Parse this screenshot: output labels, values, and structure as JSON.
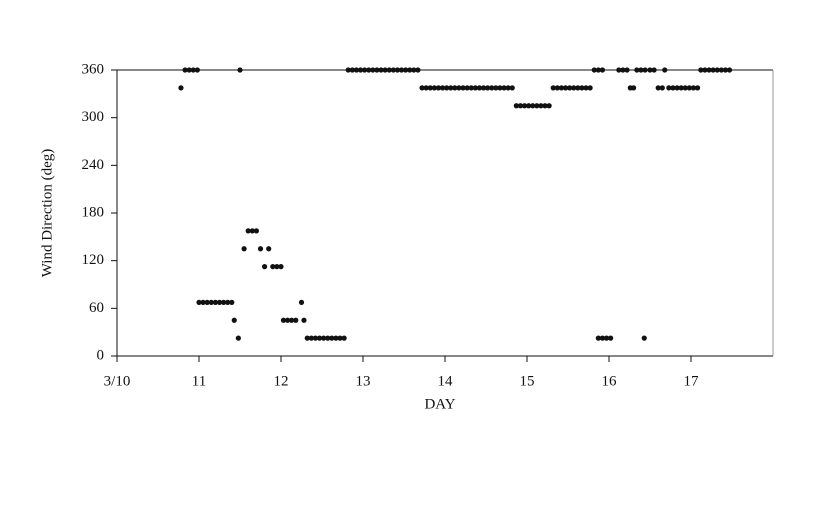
{
  "chart_data": {
    "type": "scatter",
    "x_label": "DAY",
    "y_label": "Wind Direction (deg)",
    "color": "#111111",
    "xlim": [
      10,
      18
    ],
    "ylim": [
      0,
      360
    ],
    "xticks": [
      {
        "value": 10,
        "label": "3/10"
      },
      11,
      12,
      13,
      14,
      15,
      16,
      17
    ],
    "yticks": [
      0,
      60,
      120,
      180,
      240,
      300,
      360
    ],
    "x": [
      10.78,
      10.83,
      10.88,
      10.93,
      10.98,
      11.0,
      11.05,
      11.1,
      11.15,
      11.2,
      11.25,
      11.3,
      11.35,
      11.4,
      11.43,
      11.48,
      11.5,
      11.55,
      11.6,
      11.65,
      11.7,
      11.75,
      11.8,
      11.85,
      11.9,
      11.95,
      12.0,
      12.03,
      12.08,
      12.13,
      12.18,
      12.25,
      12.28,
      12.32,
      12.37,
      12.42,
      12.47,
      12.52,
      12.57,
      12.62,
      12.67,
      12.72,
      12.77,
      12.82,
      12.87,
      12.92,
      12.97,
      13.02,
      13.07,
      13.12,
      13.17,
      13.22,
      13.27,
      13.32,
      13.37,
      13.42,
      13.47,
      13.52,
      13.57,
      13.62,
      13.67,
      13.72,
      13.77,
      13.82,
      13.87,
      13.92,
      13.97,
      14.02,
      14.07,
      14.12,
      14.17,
      14.22,
      14.27,
      14.32,
      14.37,
      14.42,
      14.47,
      14.52,
      14.57,
      14.62,
      14.67,
      14.72,
      14.77,
      14.82,
      14.87,
      14.92,
      14.97,
      15.02,
      15.07,
      15.12,
      15.17,
      15.22,
      15.27,
      15.32,
      15.37,
      15.42,
      15.47,
      15.52,
      15.57,
      15.62,
      15.67,
      15.72,
      15.77,
      15.82,
      15.87,
      15.92,
      15.87,
      15.92,
      15.97,
      16.02,
      16.12,
      16.17,
      16.22,
      16.26,
      16.3,
      16.34,
      16.39,
      16.44,
      16.43,
      16.5,
      16.55,
      16.6,
      16.65,
      16.68,
      16.73,
      16.78,
      16.83,
      16.88,
      16.93,
      16.98,
      17.03,
      17.08,
      17.12,
      17.17,
      17.22,
      17.27,
      17.32,
      17.37,
      17.42,
      17.47
    ],
    "values": [
      337.5,
      360,
      360,
      360,
      360,
      67.5,
      67.5,
      67.5,
      67.5,
      67.5,
      67.5,
      67.5,
      67.5,
      67.5,
      45,
      22.5,
      360,
      135,
      157.5,
      157.5,
      157.5,
      135,
      112.5,
      135,
      112.5,
      112.5,
      112.5,
      45,
      45,
      45,
      45,
      67.5,
      45,
      22.5,
      22.5,
      22.5,
      22.5,
      22.5,
      22.5,
      22.5,
      22.5,
      22.5,
      22.5,
      360,
      360,
      360,
      360,
      360,
      360,
      360,
      360,
      360,
      360,
      360,
      360,
      360,
      360,
      360,
      360,
      360,
      360,
      337.5,
      337.5,
      337.5,
      337.5,
      337.5,
      337.5,
      337.5,
      337.5,
      337.5,
      337.5,
      337.5,
      337.5,
      337.5,
      337.5,
      337.5,
      337.5,
      337.5,
      337.5,
      337.5,
      337.5,
      337.5,
      337.5,
      337.5,
      315,
      315,
      315,
      315,
      315,
      315,
      315,
      315,
      315,
      337.5,
      337.5,
      337.5,
      337.5,
      337.5,
      337.5,
      337.5,
      337.5,
      337.5,
      337.5,
      360,
      360,
      360,
      22.5,
      22.5,
      22.5,
      22.5,
      360,
      360,
      360,
      337.5,
      337.5,
      360,
      360,
      360,
      22.5,
      360,
      360,
      337.5,
      337.5,
      360,
      337.5,
      337.5,
      337.5,
      337.5,
      337.5,
      337.5,
      337.5,
      337.5,
      360,
      360,
      360,
      360,
      360,
      360,
      360,
      360
    ]
  }
}
